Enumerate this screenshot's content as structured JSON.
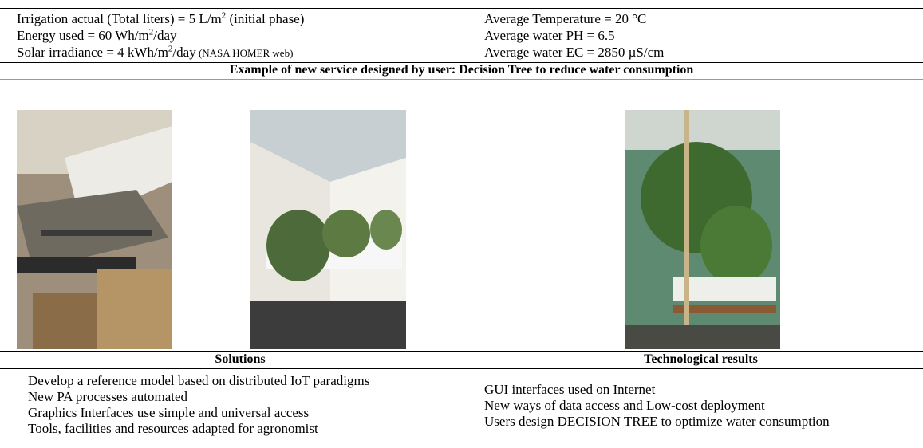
{
  "conditions": {
    "left": [
      [
        "Irrigation actual (Total liters) = 5 L/m",
        "2",
        " (initial phase)"
      ],
      [
        "Energy used = 60 Wh/m",
        "2",
        "/day"
      ],
      [
        "Solar irradiance = 4 kWh/m",
        "2",
        "/day",
        " (NASA HOMER web)"
      ]
    ],
    "right": [
      "Average Temperature = 20 °C",
      "Average water PH = 6.5",
      "Average water EC = 2850 µS/cm"
    ]
  },
  "example_heading": "Example of new service designed by user: Decision Tree to reduce water consumption",
  "solutions": {
    "heading": "Solutions",
    "items": [
      "Develop a reference model based on distributed IoT paradigms",
      "New PA processes automated",
      "Graphics Interfaces use simple and universal access",
      "Tools, facilities and resources adapted for agronomist"
    ]
  },
  "results": {
    "heading": "Technological results",
    "items": [
      "GUI interfaces used on Internet",
      "New ways of data access and Low-cost deployment",
      "Users design DECISION TREE to optimize water consumption"
    ]
  }
}
